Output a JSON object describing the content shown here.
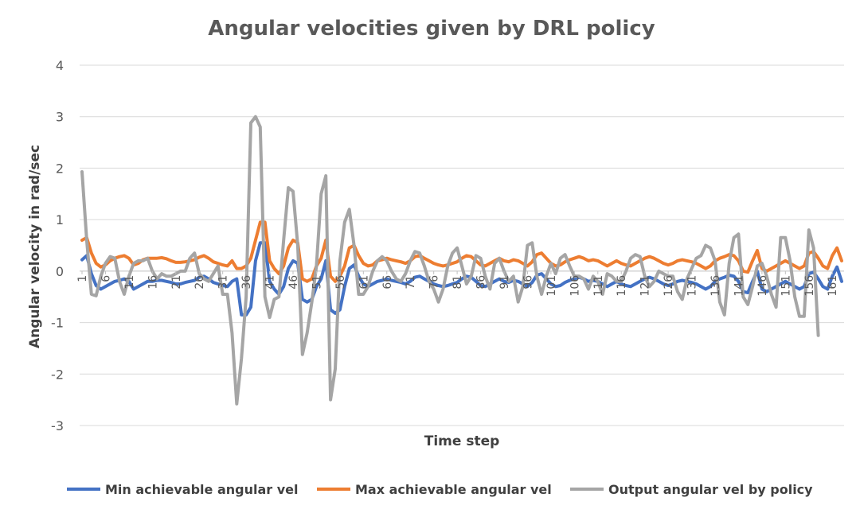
{
  "chart_data": {
    "type": "line",
    "title": "Angular velocities given by DRL policy",
    "xlabel": "Time step",
    "ylabel": "Angular velocity in rad/sec",
    "ylim": [
      -3,
      4
    ],
    "yticks": [
      -3,
      -2,
      -1,
      0,
      1,
      2,
      3,
      4
    ],
    "x_start": 1,
    "x_end": 163,
    "xtick_step": 5,
    "grid": true,
    "legend_position": "bottom",
    "series": [
      {
        "name": "Min achievable angular vel",
        "color": "#4472C4",
        "values": [
          0.22,
          0.3,
          -0.05,
          -0.28,
          -0.35,
          -0.3,
          -0.25,
          -0.2,
          -0.18,
          -0.15,
          -0.2,
          -0.35,
          -0.3,
          -0.25,
          -0.2,
          -0.2,
          -0.18,
          -0.18,
          -0.2,
          -0.22,
          -0.25,
          -0.25,
          -0.22,
          -0.2,
          -0.18,
          -0.12,
          -0.1,
          -0.15,
          -0.22,
          -0.25,
          -0.28,
          -0.3,
          -0.2,
          -0.15,
          -0.85,
          -0.85,
          -0.7,
          0.2,
          0.55,
          0.55,
          -0.2,
          -0.35,
          -0.45,
          -0.3,
          0.05,
          0.2,
          0.15,
          -0.55,
          -0.6,
          -0.55,
          -0.3,
          -0.15,
          0.2,
          -0.75,
          -0.82,
          -0.75,
          -0.3,
          0.05,
          0.12,
          -0.1,
          -0.25,
          -0.3,
          -0.25,
          -0.2,
          -0.18,
          -0.15,
          -0.18,
          -0.2,
          -0.22,
          -0.25,
          -0.2,
          -0.12,
          -0.1,
          -0.15,
          -0.2,
          -0.25,
          -0.28,
          -0.3,
          -0.28,
          -0.25,
          -0.22,
          -0.15,
          -0.1,
          -0.12,
          -0.2,
          -0.28,
          -0.3,
          -0.25,
          -0.2,
          -0.15,
          -0.2,
          -0.22,
          -0.18,
          -0.2,
          -0.25,
          -0.3,
          -0.22,
          -0.08,
          -0.05,
          -0.15,
          -0.25,
          -0.3,
          -0.28,
          -0.22,
          -0.18,
          -0.15,
          -0.12,
          -0.15,
          -0.2,
          -0.18,
          -0.2,
          -0.25,
          -0.3,
          -0.25,
          -0.2,
          -0.25,
          -0.28,
          -0.3,
          -0.25,
          -0.2,
          -0.15,
          -0.12,
          -0.15,
          -0.2,
          -0.25,
          -0.28,
          -0.25,
          -0.2,
          -0.18,
          -0.2,
          -0.22,
          -0.25,
          -0.3,
          -0.35,
          -0.3,
          -0.2,
          -0.15,
          -0.12,
          -0.08,
          -0.1,
          -0.2,
          -0.4,
          -0.42,
          -0.2,
          0.0,
          -0.35,
          -0.4,
          -0.35,
          -0.3,
          -0.25,
          -0.2,
          -0.25,
          -0.3,
          -0.35,
          -0.3,
          -0.05,
          -0.02,
          -0.15,
          -0.3,
          -0.35,
          -0.1,
          0.08,
          -0.2
        ]
      },
      {
        "name": "Max achievable angular vel",
        "color": "#ED7D31",
        "values": [
          0.6,
          0.65,
          0.35,
          0.15,
          0.08,
          0.12,
          0.2,
          0.25,
          0.28,
          0.3,
          0.25,
          0.12,
          0.15,
          0.22,
          0.25,
          0.25,
          0.25,
          0.26,
          0.24,
          0.2,
          0.17,
          0.17,
          0.18,
          0.2,
          0.22,
          0.27,
          0.3,
          0.25,
          0.18,
          0.15,
          0.12,
          0.1,
          0.2,
          0.05,
          0.05,
          0.1,
          0.25,
          0.6,
          0.95,
          0.95,
          0.2,
          0.05,
          -0.05,
          0.1,
          0.45,
          0.6,
          0.55,
          -0.15,
          -0.2,
          -0.15,
          0.1,
          0.25,
          0.6,
          -0.1,
          -0.2,
          -0.1,
          0.1,
          0.45,
          0.5,
          0.3,
          0.15,
          0.1,
          0.12,
          0.2,
          0.22,
          0.25,
          0.22,
          0.2,
          0.18,
          0.15,
          0.2,
          0.28,
          0.3,
          0.25,
          0.2,
          0.15,
          0.12,
          0.1,
          0.12,
          0.15,
          0.18,
          0.25,
          0.3,
          0.28,
          0.2,
          0.12,
          0.1,
          0.15,
          0.2,
          0.25,
          0.2,
          0.18,
          0.22,
          0.2,
          0.15,
          0.1,
          0.18,
          0.32,
          0.35,
          0.25,
          0.15,
          0.1,
          0.12,
          0.18,
          0.22,
          0.25,
          0.28,
          0.25,
          0.2,
          0.22,
          0.2,
          0.15,
          0.1,
          0.15,
          0.2,
          0.15,
          0.12,
          0.1,
          0.15,
          0.2,
          0.25,
          0.28,
          0.25,
          0.2,
          0.15,
          0.12,
          0.15,
          0.2,
          0.22,
          0.2,
          0.18,
          0.15,
          0.1,
          0.05,
          0.1,
          0.2,
          0.25,
          0.28,
          0.32,
          0.3,
          0.2,
          0.0,
          -0.02,
          0.2,
          0.4,
          0.05,
          0.0,
          0.05,
          0.1,
          0.15,
          0.2,
          0.15,
          0.1,
          0.05,
          0.1,
          0.35,
          0.38,
          0.25,
          0.1,
          0.05,
          0.3,
          0.45,
          0.2
        ]
      },
      {
        "name": "Output angular vel by policy",
        "color": "#A5A5A5",
        "values": [
          1.93,
          0.6,
          -0.45,
          -0.48,
          -0.1,
          0.15,
          0.28,
          0.25,
          -0.2,
          -0.45,
          -0.1,
          0.15,
          0.2,
          0.2,
          0.25,
          0.0,
          -0.15,
          -0.05,
          -0.1,
          -0.1,
          -0.05,
          0.0,
          0.0,
          0.25,
          0.35,
          -0.05,
          -0.15,
          -0.2,
          -0.05,
          0.1,
          -0.45,
          -0.45,
          -1.2,
          -2.58,
          -1.7,
          -0.5,
          2.88,
          3.0,
          2.8,
          -0.5,
          -0.9,
          -0.55,
          -0.5,
          0.6,
          1.62,
          1.55,
          0.5,
          -1.62,
          -1.2,
          -0.6,
          0.1,
          1.5,
          1.85,
          -2.5,
          -1.9,
          0.2,
          0.95,
          1.2,
          0.5,
          -0.45,
          -0.45,
          -0.3,
          0.0,
          0.2,
          0.28,
          0.2,
          0.0,
          -0.15,
          -0.2,
          -0.05,
          0.2,
          0.38,
          0.35,
          0.1,
          -0.2,
          -0.35,
          -0.6,
          -0.35,
          0.1,
          0.35,
          0.45,
          0.1,
          -0.25,
          -0.1,
          0.3,
          0.25,
          -0.1,
          -0.35,
          0.15,
          0.25,
          0.0,
          -0.2,
          -0.1,
          -0.6,
          -0.3,
          0.5,
          0.55,
          -0.1,
          -0.45,
          -0.1,
          0.15,
          -0.05,
          0.25,
          0.32,
          0.1,
          -0.1,
          -0.1,
          -0.15,
          -0.35,
          -0.1,
          -0.2,
          -0.45,
          -0.05,
          -0.1,
          -0.2,
          -0.2,
          0.0,
          0.25,
          0.32,
          0.28,
          -0.1,
          -0.3,
          -0.2,
          0.0,
          -0.05,
          -0.1,
          -0.1,
          -0.4,
          -0.55,
          -0.15,
          0.05,
          0.25,
          0.3,
          0.5,
          0.45,
          0.2,
          -0.6,
          -0.85,
          0.15,
          0.65,
          0.72,
          -0.5,
          -0.65,
          -0.3,
          0.1,
          0.15,
          -0.1,
          -0.45,
          -0.7,
          0.65,
          0.65,
          0.2,
          -0.5,
          -0.88,
          -0.88,
          0.8,
          0.45,
          -1.25
        ]
      }
    ]
  }
}
